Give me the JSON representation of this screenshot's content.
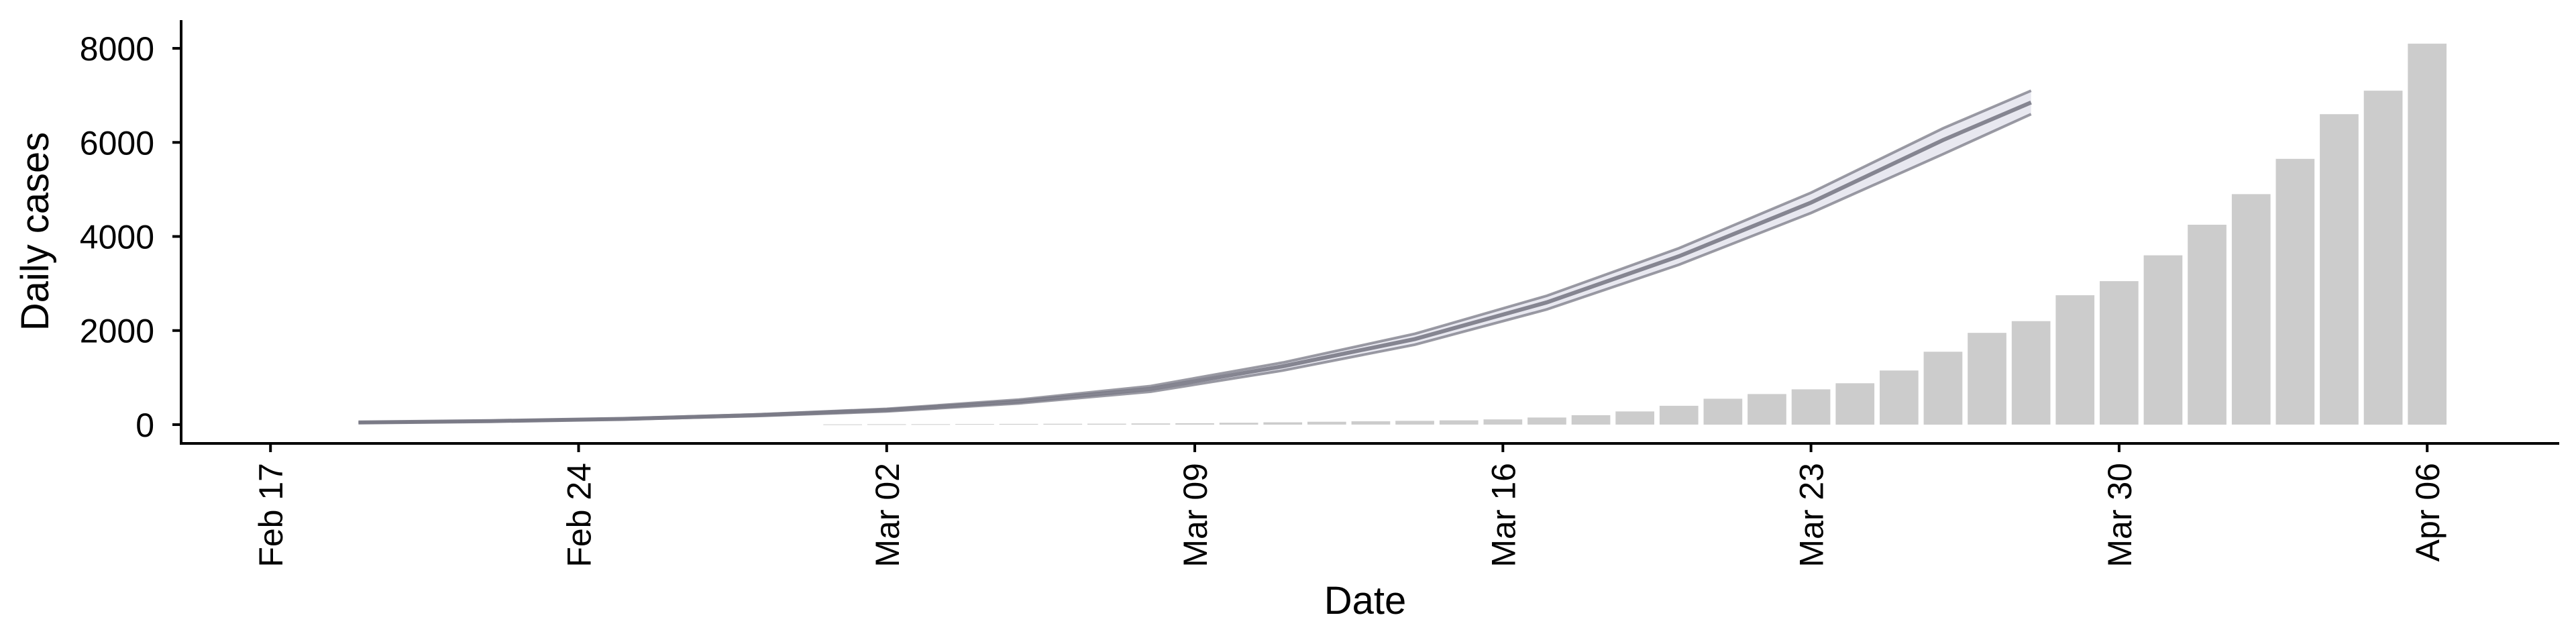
{
  "chart_data": {
    "type": "bar",
    "title": "",
    "xlabel": "Date",
    "ylabel": "Daily cases",
    "ylim": [
      -400,
      8600
    ],
    "xlim": [
      "2020-02-15",
      "2020-04-09"
    ],
    "x_ticks": [
      "Feb 17",
      "Feb 24",
      "Mar 02",
      "Mar 09",
      "Mar 16",
      "Mar 23",
      "Mar 30",
      "Apr 06"
    ],
    "x_tick_dates": [
      "2020-02-17",
      "2020-02-24",
      "2020-03-02",
      "2020-03-09",
      "2020-03-16",
      "2020-03-23",
      "2020-03-30",
      "2020-04-06"
    ],
    "y_ticks": [
      0,
      2000,
      4000,
      6000,
      8000
    ],
    "grid": false,
    "legend": "none",
    "colors": {
      "bars": "#cccccc",
      "curves": "#7a7a86",
      "curve_band": "#d8d8e6"
    },
    "bars": {
      "dates": [
        "2020-03-01",
        "2020-03-02",
        "2020-03-03",
        "2020-03-04",
        "2020-03-05",
        "2020-03-06",
        "2020-03-07",
        "2020-03-08",
        "2020-03-09",
        "2020-03-10",
        "2020-03-11",
        "2020-03-12",
        "2020-03-13",
        "2020-03-14",
        "2020-03-15",
        "2020-03-16",
        "2020-03-17",
        "2020-03-18",
        "2020-03-19",
        "2020-03-20",
        "2020-03-21",
        "2020-03-22",
        "2020-03-23",
        "2020-03-24",
        "2020-03-25",
        "2020-03-26",
        "2020-03-27",
        "2020-03-28",
        "2020-03-29",
        "2020-03-30",
        "2020-03-31",
        "2020-04-01",
        "2020-04-02",
        "2020-04-03",
        "2020-04-04",
        "2020-04-05",
        "2020-04-06"
      ],
      "values": [
        5,
        8,
        10,
        12,
        15,
        18,
        20,
        25,
        30,
        40,
        50,
        60,
        70,
        80,
        90,
        110,
        150,
        200,
        280,
        400,
        550,
        650,
        750,
        880,
        1150,
        1550,
        1950,
        2200,
        2750,
        3050,
        3600,
        4250,
        4900,
        5650,
        6600,
        7100,
        8100
      ]
    },
    "series": [
      {
        "x": [
          "2020-02-19",
          "2020-02-22",
          "2020-02-25",
          "2020-02-28",
          "2020-03-02",
          "2020-03-05",
          "2020-03-08",
          "2020-03-11",
          "2020-03-14",
          "2020-03-17",
          "2020-03-20",
          "2020-03-23",
          "2020-03-26",
          "2020-03-28"
        ],
        "y": [
          40,
          70,
          110,
          180,
          280,
          450,
          700,
          1150,
          1700,
          2450,
          3400,
          4500,
          5750,
          6600
        ]
      },
      {
        "x": [
          "2020-02-19",
          "2020-02-22",
          "2020-02-25",
          "2020-02-28",
          "2020-03-02",
          "2020-03-05",
          "2020-03-08",
          "2020-03-11",
          "2020-03-14",
          "2020-03-17",
          "2020-03-20",
          "2020-03-23",
          "2020-03-26",
          "2020-03-28"
        ],
        "y": [
          45,
          75,
          120,
          200,
          310,
          490,
          760,
          1240,
          1820,
          2600,
          3580,
          4720,
          6050,
          6850
        ]
      },
      {
        "x": [
          "2020-02-19",
          "2020-02-22",
          "2020-02-25",
          "2020-02-28",
          "2020-03-02",
          "2020-03-05",
          "2020-03-08",
          "2020-03-11",
          "2020-03-14",
          "2020-03-17",
          "2020-03-20",
          "2020-03-23",
          "2020-03-26",
          "2020-03-28"
        ],
        "y": [
          50,
          80,
          130,
          215,
          335,
          530,
          820,
          1320,
          1930,
          2740,
          3750,
          4930,
          6300,
          7100
        ]
      }
    ]
  }
}
